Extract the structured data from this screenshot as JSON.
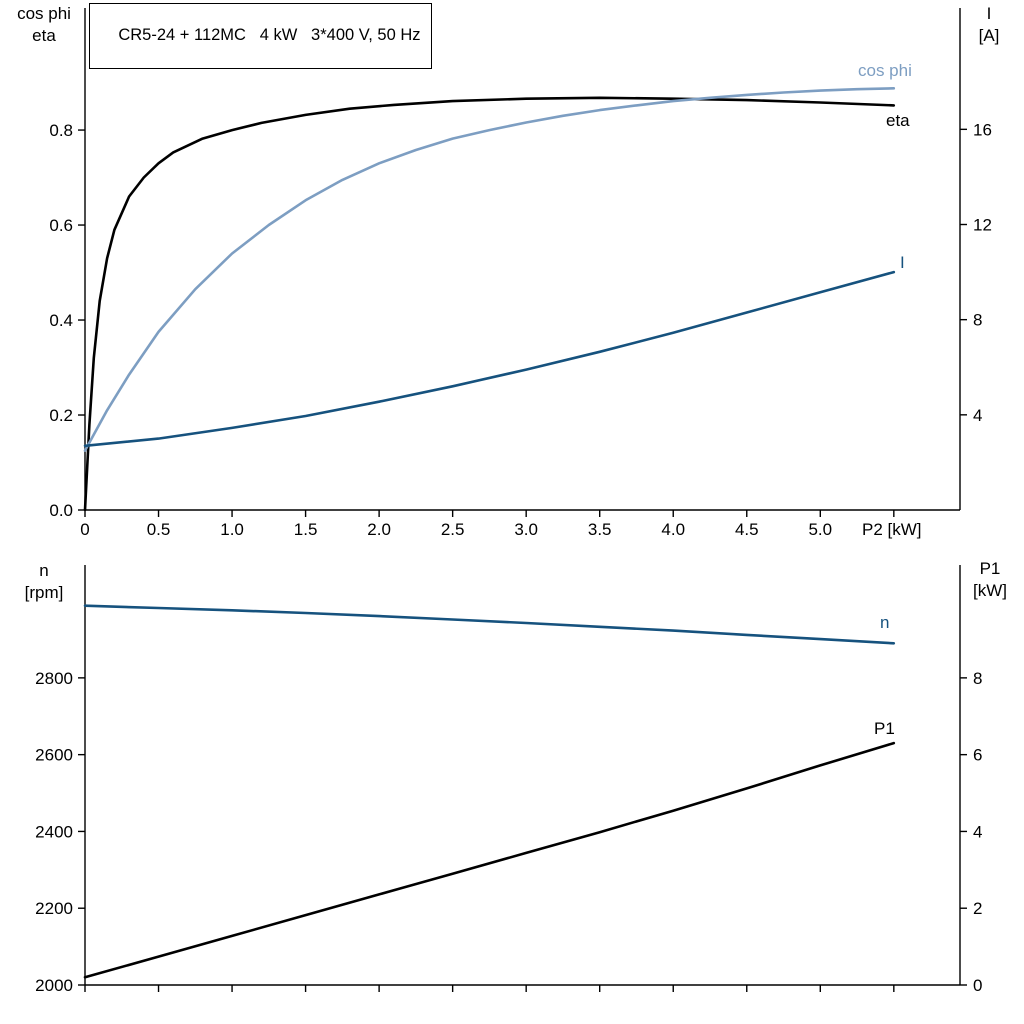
{
  "chart_data": [
    {
      "type": "line",
      "title": "CR5-24 + 112MC   4 kW   3*400 V, 50 Hz",
      "xlabel": "P2 [kW]",
      "xlim": [
        0,
        5.95
      ],
      "grid": false,
      "x_ticks": {
        "values": [
          0,
          0.5,
          1,
          1.5,
          2,
          2.5,
          3,
          3.5,
          4,
          4.5,
          5,
          5.5
        ],
        "labels": [
          "0",
          "0.5",
          "1.0",
          "1.5",
          "2.0",
          "2.5",
          "3.0",
          "3.5",
          "4.0",
          "4.5",
          "5.0",
          ""
        ]
      },
      "left_axis": {
        "name_lines": [
          "cos phi",
          "eta"
        ],
        "lim": [
          0,
          1.057
        ],
        "ticks": [
          0,
          0.2,
          0.4,
          0.6,
          0.8
        ],
        "labels": [
          "0.0",
          "0.2",
          "0.4",
          "0.6",
          "0.8"
        ]
      },
      "right_axis": {
        "name_lines": [
          "I",
          "[A]"
        ],
        "lim": [
          0,
          21.1
        ],
        "ticks": [
          4,
          8,
          12,
          16
        ],
        "labels": [
          "4",
          "8",
          "12",
          "16"
        ]
      },
      "series": [
        {
          "name": "eta",
          "axis": "left",
          "color": "#000000",
          "x": [
            0,
            0.03,
            0.06,
            0.1,
            0.15,
            0.2,
            0.3,
            0.4,
            0.5,
            0.6,
            0.8,
            1.0,
            1.2,
            1.5,
            1.8,
            2.1,
            2.5,
            3.0,
            3.5,
            4.0,
            4.5,
            5.0,
            5.5
          ],
          "y": [
            0,
            0.18,
            0.32,
            0.44,
            0.53,
            0.59,
            0.66,
            0.7,
            0.73,
            0.753,
            0.782,
            0.8,
            0.815,
            0.832,
            0.845,
            0.853,
            0.861,
            0.866,
            0.868,
            0.866,
            0.863,
            0.858,
            0.852
          ]
        },
        {
          "name": "cos phi",
          "axis": "left",
          "color": "#7d9ec2",
          "x": [
            0,
            0.15,
            0.3,
            0.5,
            0.75,
            1.0,
            1.25,
            1.5,
            1.75,
            2.0,
            2.25,
            2.5,
            2.75,
            3.0,
            3.25,
            3.5,
            3.75,
            4.0,
            4.25,
            4.5,
            4.75,
            5.0,
            5.25,
            5.5
          ],
          "y": [
            0.125,
            0.21,
            0.285,
            0.375,
            0.465,
            0.54,
            0.6,
            0.652,
            0.695,
            0.73,
            0.758,
            0.782,
            0.8,
            0.816,
            0.83,
            0.842,
            0.852,
            0.861,
            0.868,
            0.874,
            0.879,
            0.883,
            0.886,
            0.888
          ]
        },
        {
          "name": "I",
          "axis": "right",
          "color": "#16527e",
          "x": [
            0,
            0.5,
            1,
            1.5,
            2,
            2.5,
            3,
            3.5,
            4,
            4.5,
            5,
            5.5
          ],
          "y": [
            2.7,
            3.0,
            3.45,
            3.95,
            4.55,
            5.2,
            5.9,
            6.65,
            7.45,
            8.3,
            9.15,
            10.0
          ]
        }
      ]
    },
    {
      "type": "line",
      "title": "",
      "xlabel": "",
      "xlim": [
        0,
        5.95
      ],
      "grid": false,
      "x_ticks": {
        "values": [
          0,
          0.5,
          1,
          1.5,
          2,
          2.5,
          3,
          3.5,
          4,
          4.5,
          5,
          5.5
        ],
        "labels": []
      },
      "left_axis": {
        "name_lines": [
          "n",
          "[rpm]"
        ],
        "lim": [
          2000,
          3094
        ],
        "ticks": [
          2000,
          2200,
          2400,
          2600,
          2800
        ],
        "labels": [
          "2000",
          "2200",
          "2400",
          "2600",
          "2800"
        ]
      },
      "right_axis": {
        "name_lines": [
          "P1",
          "[kW]"
        ],
        "lim": [
          0,
          10.94
        ],
        "ticks": [
          0,
          2,
          4,
          6,
          8
        ],
        "labels": [
          "0",
          "2",
          "4",
          "6",
          "8"
        ]
      },
      "series": [
        {
          "name": "n",
          "axis": "left",
          "color": "#16527e",
          "x": [
            0,
            0.5,
            1,
            1.5,
            2,
            2.5,
            3,
            3.5,
            4,
            4.5,
            5,
            5.5
          ],
          "y": [
            2988,
            2982,
            2976,
            2969,
            2961,
            2952,
            2943,
            2933,
            2923,
            2912,
            2901,
            2890
          ]
        },
        {
          "name": "P1",
          "axis": "right",
          "color": "#000000",
          "x": [
            0,
            0.5,
            1,
            1.5,
            2,
            2.5,
            3,
            3.5,
            4,
            4.5,
            5,
            5.5
          ],
          "y": [
            0.2,
            0.74,
            1.28,
            1.82,
            2.36,
            2.9,
            3.44,
            3.98,
            4.54,
            5.12,
            5.72,
            6.3
          ]
        }
      ]
    }
  ]
}
